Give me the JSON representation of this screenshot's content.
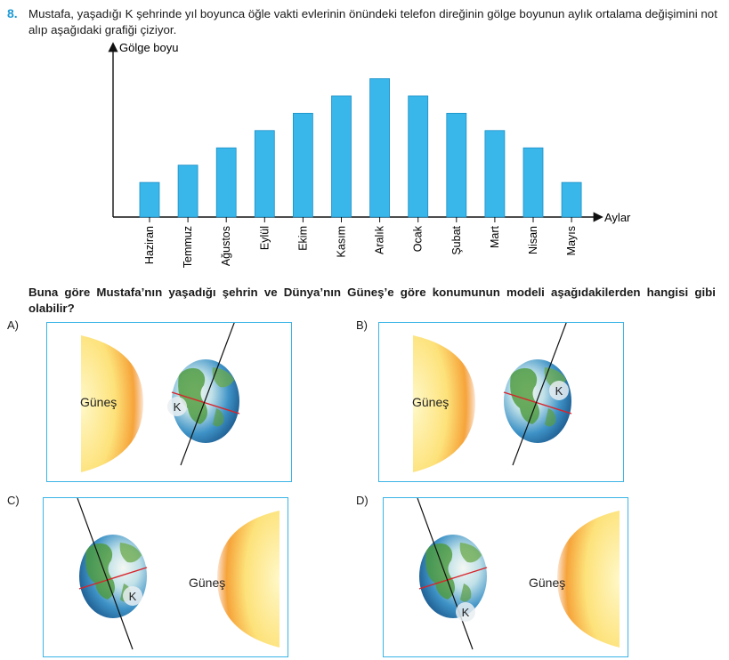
{
  "question": {
    "number": "8.",
    "text": "Mustafa, yaşadığı K şehrinde yıl boyunca öğle vakti evlerinin önündeki telefon direğinin gölge boyunun aylık ortalama değişimini not alıp aşağıdaki grafiği çiziyor.",
    "prompt": "Buna göre Mustafa’nın yaşadığı şehrin ve Dünya’nın Güneş’e göre konumunun modeli aşağıdakilerden hangisi gibi olabilir?"
  },
  "chart_data": {
    "type": "bar",
    "ylabel": "Gölge boyu",
    "xlabel": "Aylar",
    "categories": [
      "Haziran",
      "Temmuz",
      "Ağustos",
      "Eylül",
      "Ekim",
      "Kasım",
      "Aralık",
      "Ocak",
      "Şubat",
      "Mart",
      "Nisan",
      "Mayıs"
    ],
    "values": [
      2,
      3,
      4,
      5,
      6,
      7,
      8,
      7,
      6,
      5,
      4,
      2
    ],
    "ylim": [
      0,
      9
    ],
    "grid": false,
    "color": "#39b7ea"
  },
  "options": [
    {
      "letter": "A)",
      "sun_label": "Güneş",
      "city_label": "K"
    },
    {
      "letter": "B)",
      "sun_label": "Güneş",
      "city_label": "K"
    },
    {
      "letter": "C)",
      "sun_label": "Güneş",
      "city_label": "K"
    },
    {
      "letter": "D)",
      "sun_label": "Güneş",
      "city_label": "K"
    }
  ],
  "colors": {
    "accent": "#1e9ad6",
    "box_border": "#3ab4e6",
    "bar": "#39b7ea",
    "equator": "#d9232a"
  }
}
